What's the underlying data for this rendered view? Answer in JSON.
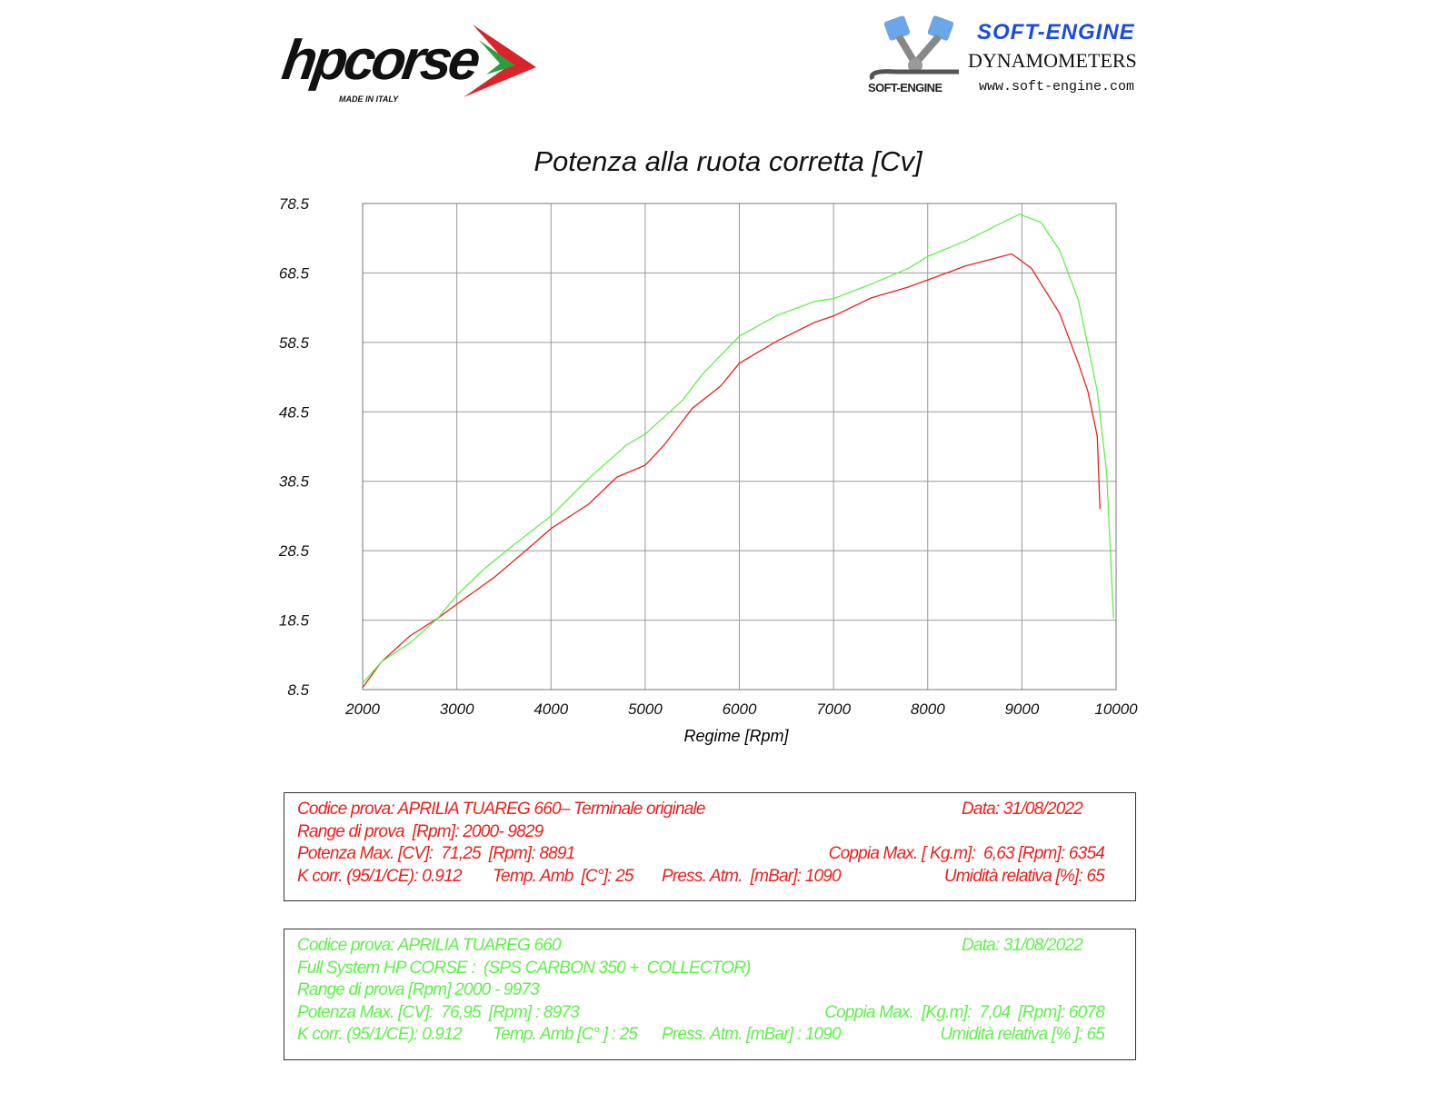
{
  "logos": {
    "hpcorse": {
      "text": "hpcorse",
      "tagline": "MADE IN ITALY"
    },
    "softengine": {
      "title": "SOFT-ENGINE",
      "subtitle": "DYNAMOMETERS",
      "url": "www.soft-engine.com",
      "mark": "SOFT-ENGINE"
    }
  },
  "chart_data": {
    "type": "line",
    "title": "Potenza alla ruota corretta [Cv]",
    "xlabel": "Regime [Rpm]",
    "ylabel": "",
    "xlim": [
      2000,
      10000
    ],
    "ylim": [
      8.5,
      78.5
    ],
    "xticks": [
      "2000",
      "3000",
      "4000",
      "5000",
      "6000",
      "7000",
      "8000",
      "9000",
      "10000"
    ],
    "yticks": [
      "78.5",
      "68.5",
      "58.5",
      "48.5",
      "38.5",
      "28.5",
      "18.5",
      "8.5"
    ],
    "grid": true,
    "series": [
      {
        "color": "#e8201c",
        "x": [
          2000,
          2200,
          2500,
          2800,
          3000,
          3400,
          3800,
          4000,
          4400,
          4700,
          5000,
          5200,
          5500,
          5800,
          6000,
          6400,
          6800,
          7000,
          7400,
          7800,
          8000,
          8400,
          8891,
          9100,
          9400,
          9600,
          9700,
          9800,
          9829
        ],
        "y": [
          8.8,
          12.5,
          16.2,
          18.8,
          20.8,
          24.7,
          29.3,
          31.7,
          35.2,
          39.1,
          40.8,
          43.7,
          49.0,
          52.2,
          55.5,
          58.7,
          61.4,
          62.3,
          64.9,
          66.5,
          67.5,
          69.5,
          71.25,
          69.2,
          62.7,
          55.5,
          51.5,
          45.0,
          34.5
        ]
      },
      {
        "color": "#5ef04a",
        "x": [
          2000,
          2200,
          2500,
          2800,
          3000,
          3300,
          3600,
          4000,
          4400,
          4800,
          5000,
          5400,
          5600,
          6000,
          6400,
          6800,
          7000,
          7400,
          7800,
          8000,
          8400,
          8800,
          8973,
          9200,
          9400,
          9600,
          9800,
          9900,
          9973
        ],
        "y": [
          9.4,
          12.5,
          15.2,
          18.8,
          22.1,
          26.0,
          29.3,
          33.5,
          38.9,
          43.7,
          45.3,
          50.2,
          53.8,
          59.4,
          62.4,
          64.4,
          64.8,
          66.9,
          69.2,
          70.9,
          73.1,
          75.8,
          76.95,
          75.8,
          71.8,
          64.6,
          51.5,
          39.8,
          18.8
        ]
      }
    ]
  },
  "tests": [
    {
      "color": "#e8201c",
      "rows": [
        [
          "Codice prova: APRILIA TUAREG 660– Terminale originale",
          "",
          "",
          "Data: 31/08/2022"
        ],
        [
          "Range di prova  [Rpm]: 2000- 9829",
          "",
          "",
          ""
        ],
        [
          "Potenza Max. [CV]:  71,25  [Rpm]: 8891",
          "",
          "",
          "Coppia Max. [ Kg.m]:  6,63 [Rpm]: 6354"
        ],
        [
          "K corr. (95/1/CE): 0.912",
          "Temp. Amb  [C°]: 25",
          "Press. Atm.  [mBar]: 1090",
          "Umidità relativa [%]: 65"
        ]
      ]
    },
    {
      "color": "#5ef04a",
      "rows": [
        [
          "Codice prova: APRILIA TUAREG 660",
          "",
          "",
          "Data: 31/08/2022"
        ],
        [
          "Full System HP CORSE :  (SPS CARBON 350 +  COLLECTOR)",
          "",
          "",
          ""
        ],
        [
          "Range di prova [Rpm] 2000 - 9973",
          "",
          "",
          ""
        ],
        [
          "Potenza Max. [CV]:  76,95  [Rpm] : 8973",
          "",
          "",
          "Coppia Max.  [Kg.m]:  7,04  [Rpm]: 6078"
        ],
        [
          "K corr. (95/1/CE): 0.912",
          "Temp. Amb [C° ] : 25",
          "Press. Atm. [mBar] : 1090",
          "Umidità relativa [% ]: 65"
        ]
      ]
    }
  ]
}
